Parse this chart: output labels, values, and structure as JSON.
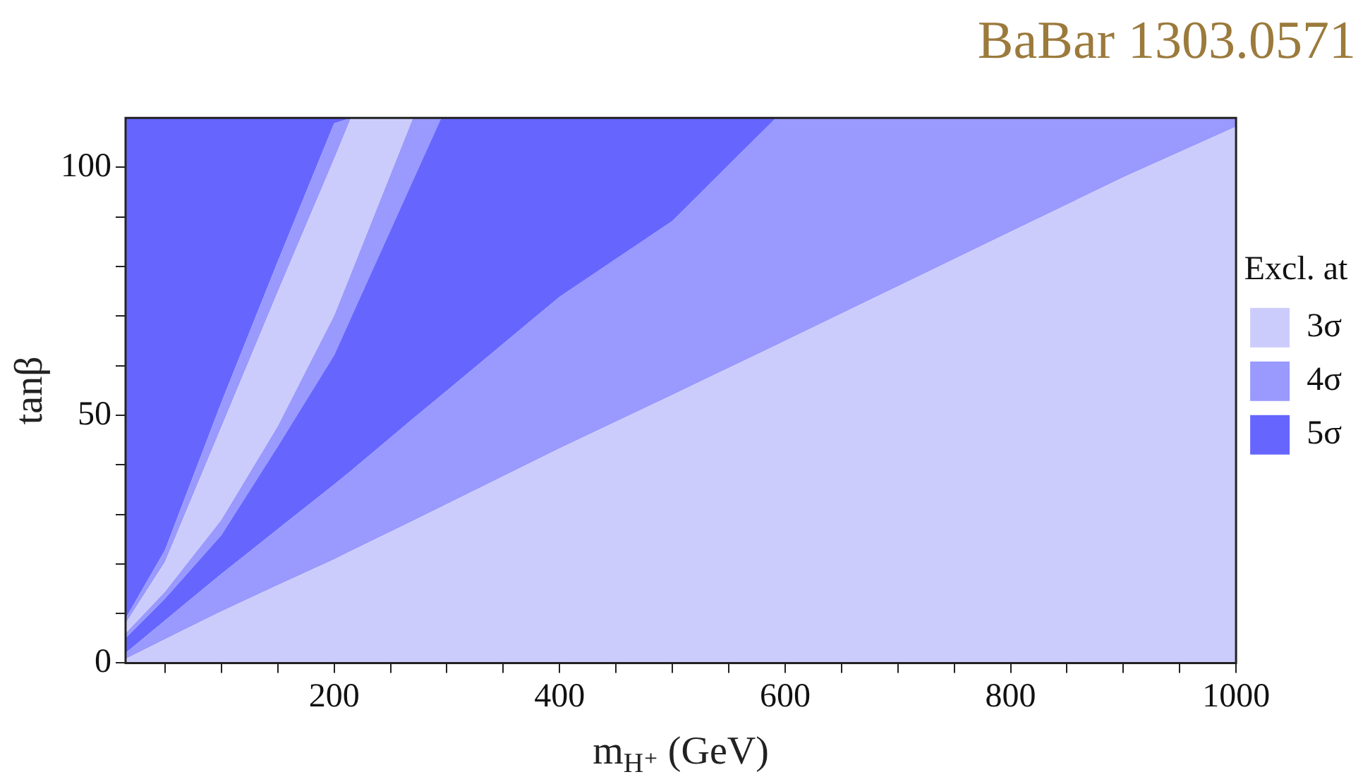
{
  "chart_data": {
    "type": "area",
    "stacked": true,
    "title": "BaBar 1303.0571",
    "xlabel": "m$_{H⁺}$ (GeV)",
    "ylabel": "tanβ",
    "legend_title": "Excl. at",
    "legend": "right",
    "grid": false,
    "xlim": [
      15,
      1000
    ],
    "xticks": [
      {
        "value": 50,
        "label": null
      },
      {
        "value": 100,
        "label": null
      },
      {
        "value": 150,
        "label": null
      },
      200,
      {
        "value": 250,
        "label": null
      },
      {
        "value": 300,
        "label": null
      },
      {
        "value": 350,
        "label": null
      },
      400,
      {
        "value": 450,
        "label": null
      },
      {
        "value": 500,
        "label": null
      },
      {
        "value": 550,
        "label": null
      },
      600,
      {
        "value": 650,
        "label": null
      },
      {
        "value": 700,
        "label": null
      },
      {
        "value": 750,
        "label": null
      },
      800,
      {
        "value": 850,
        "label": null
      },
      {
        "value": 900,
        "label": null
      },
      {
        "value": 950,
        "label": null
      },
      1000
    ],
    "ylim": [
      0,
      110
    ],
    "yticks": [
      0,
      {
        "value": 10,
        "label": null
      },
      {
        "value": 20,
        "label": null
      },
      {
        "value": 30,
        "label": null
      },
      {
        "value": 40,
        "label": null
      },
      50,
      {
        "value": 60,
        "label": null
      },
      {
        "value": 70,
        "label": null
      },
      {
        "value": 80,
        "label": null
      },
      {
        "value": 90,
        "label": null
      },
      100
    ],
    "x": [
      15,
      50,
      100,
      150,
      200,
      215,
      270,
      295,
      400,
      500,
      592,
      700,
      800,
      900,
      1000
    ],
    "series": [
      {
        "name": "3σ",
        "color": "#ccccfc",
        "values": [
          0.8,
          4.8,
          10.4,
          15.7,
          20.9,
          22.6,
          28.7,
          31.5,
          43.3,
          54.1,
          64.1,
          76.0,
          87.0,
          98.0,
          108.2
        ]
      },
      {
        "name": "4σ",
        "color": "#9999fe",
        "values": [
          1.2,
          3.8,
          7.6,
          11.3,
          15.1,
          16.2,
          20.6,
          22.5,
          30.6,
          35.1,
          45.9,
          34.0,
          23.0,
          12.0,
          1.8
        ]
      },
      {
        "name": "5σ",
        "color": "#6666ff",
        "values": [
          3,
          4.4,
          7.8,
          16.7,
          26.1,
          30.9,
          48.1,
          56.0,
          36.1,
          20.8,
          0,
          0,
          0,
          0,
          0
        ]
      },
      {
        "color": "#9999fe",
        "values": [
          1,
          1.4,
          3.1,
          4.1,
          8.0,
          8.9,
          12.6,
          0,
          0,
          0,
          0,
          0,
          0,
          0,
          0
        ]
      },
      {
        "color": "#ccccfc",
        "values": [
          2,
          6.0,
          18.7,
          27.1,
          31.6,
          31.4,
          0,
          0,
          0,
          0,
          0,
          0,
          0,
          0,
          0
        ]
      },
      {
        "color": "#9999fe",
        "values": [
          1,
          2.4,
          5.0,
          6.1,
          7.2,
          0,
          0,
          0,
          0,
          0,
          0,
          0,
          0,
          0,
          0
        ]
      },
      {
        "color": "#6666ff",
        "values": [
          101,
          87.2,
          57.4,
          29.0,
          1.1,
          0,
          0,
          0,
          0,
          0,
          0,
          0,
          0,
          0,
          0
        ]
      }
    ]
  }
}
